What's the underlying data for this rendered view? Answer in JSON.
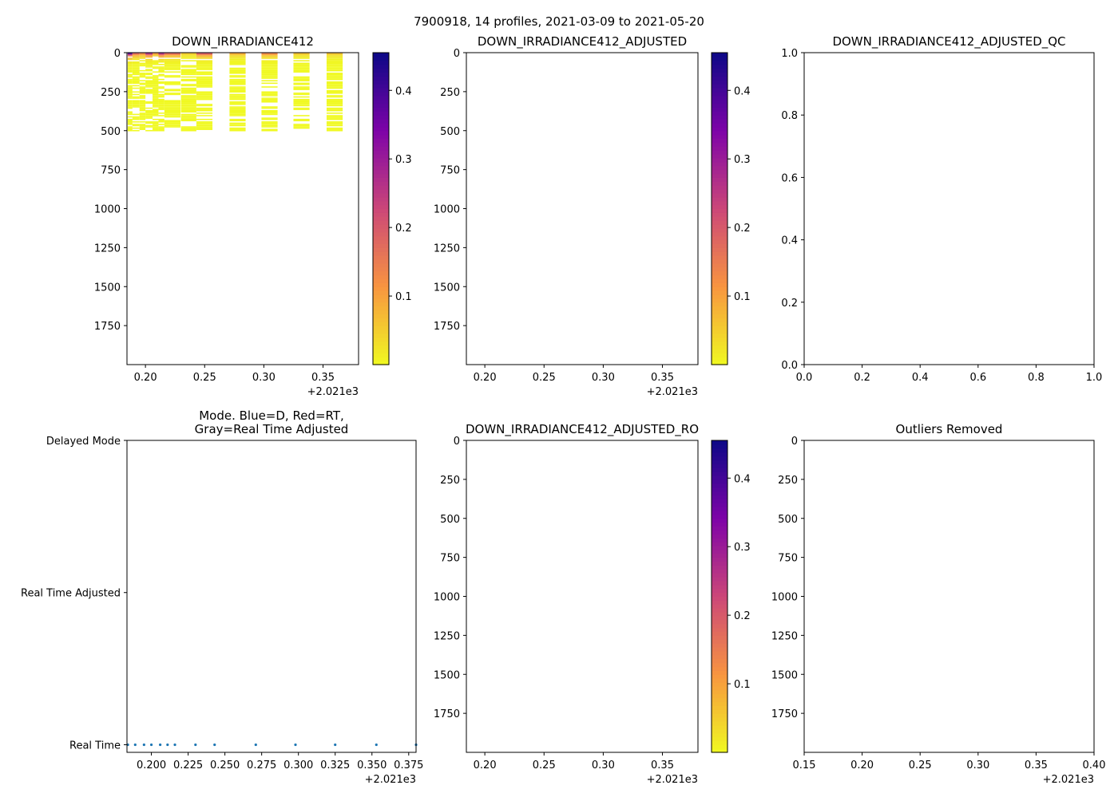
{
  "suptitle": "7900918, 14 profiles, 2021-03-09 to 2021-05-20",
  "colors": {
    "point": "#1f77b4",
    "frame": "#000000",
    "cmap": "plasma_r"
  },
  "profile_times": [
    0.184,
    0.189,
    0.195,
    0.2,
    0.206,
    0.211,
    0.216,
    0.23,
    0.243,
    0.271,
    0.298,
    0.325,
    0.353,
    0.38
  ],
  "chart_data": [
    {
      "id": "p1",
      "type": "heatmap",
      "title": "DOWN_IRRADIANCE412",
      "xlim": [
        0.1844,
        0.38
      ],
      "ylim": [
        2000,
        0
      ],
      "y_inverted": true,
      "xticks": [
        0.2,
        0.25,
        0.3,
        0.35
      ],
      "xtick_labels": [
        "0.20",
        "0.25",
        "0.30",
        "0.35"
      ],
      "x_offset": "+2.021e3",
      "yticks": [
        0,
        250,
        500,
        750,
        1000,
        1250,
        1500,
        1750
      ],
      "ytick_labels": [
        "0",
        "250",
        "500",
        "750",
        "1000",
        "1250",
        "1500",
        "1750"
      ],
      "profiles": [
        {
          "time": 0.185,
          "max_depth": 500,
          "surface_value": 0.42
        },
        {
          "time": 0.189,
          "max_depth": 500,
          "surface_value": 0.2
        },
        {
          "time": 0.195,
          "max_depth": 500,
          "surface_value": 0.15
        },
        {
          "time": 0.2,
          "max_depth": 500,
          "surface_value": 0.3
        },
        {
          "time": 0.206,
          "max_depth": 500,
          "surface_value": 0.12
        },
        {
          "time": 0.211,
          "max_depth": 500,
          "surface_value": 0.3
        },
        {
          "time": 0.216,
          "max_depth": 500,
          "surface_value": 0.2
        },
        {
          "time": 0.23,
          "max_depth": 500,
          "surface_value": 0.06
        },
        {
          "time": 0.243,
          "max_depth": 500,
          "surface_value": 0.22
        },
        {
          "time": 0.271,
          "max_depth": 500,
          "surface_value": 0.1
        },
        {
          "time": 0.298,
          "max_depth": 500,
          "surface_value": 0.15
        },
        {
          "time": 0.325,
          "max_depth": 500,
          "surface_value": 0.07
        },
        {
          "time": 0.353,
          "max_depth": 500,
          "surface_value": 0.07
        },
        {
          "time": 0.38,
          "max_depth": 0,
          "surface_value": 0
        }
      ],
      "colorbar": {
        "range": [
          0,
          0.455
        ],
        "ticks": [
          0.1,
          0.2,
          0.3,
          0.4
        ],
        "tick_labels": [
          "0.1",
          "0.2",
          "0.3",
          "0.4"
        ]
      }
    },
    {
      "id": "p2",
      "type": "heatmap",
      "title": "DOWN_IRRADIANCE412_ADJUSTED",
      "xlim": [
        0.1844,
        0.38
      ],
      "ylim": [
        2000,
        0
      ],
      "xticks": [
        0.2,
        0.25,
        0.3,
        0.35
      ],
      "xtick_labels": [
        "0.20",
        "0.25",
        "0.30",
        "0.35"
      ],
      "x_offset": "+2.021e3",
      "yticks": [
        0,
        250,
        500,
        750,
        1000,
        1250,
        1500,
        1750
      ],
      "ytick_labels": [
        "0",
        "250",
        "500",
        "750",
        "1000",
        "1250",
        "1500",
        "1750"
      ],
      "profiles": [],
      "colorbar": {
        "range": [
          0,
          0.455
        ],
        "ticks": [
          0.1,
          0.2,
          0.3,
          0.4
        ],
        "tick_labels": [
          "0.1",
          "0.2",
          "0.3",
          "0.4"
        ]
      }
    },
    {
      "id": "p3",
      "type": "line",
      "title": "DOWN_IRRADIANCE412_ADJUSTED_QC",
      "xlim": [
        0,
        1
      ],
      "ylim": [
        0,
        1
      ],
      "xticks": [
        0,
        0.2,
        0.4,
        0.6,
        0.8,
        1.0
      ],
      "xtick_labels": [
        "0.0",
        "0.2",
        "0.4",
        "0.6",
        "0.8",
        "1.0"
      ],
      "yticks": [
        0,
        0.2,
        0.4,
        0.6,
        0.8,
        1.0
      ],
      "ytick_labels": [
        "0.0",
        "0.2",
        "0.4",
        "0.6",
        "0.8",
        "1.0"
      ]
    },
    {
      "id": "p4",
      "type": "scatter",
      "title": "Mode. Blue=D, Red=RT,",
      "title2": "Gray=Real Time Adjusted",
      "xlim": [
        0.1834,
        0.38
      ],
      "ylim": [
        -0.05,
        2
      ],
      "xticks": [
        0.2,
        0.225,
        0.25,
        0.275,
        0.3,
        0.325,
        0.35,
        0.375
      ],
      "xtick_labels": [
        "0.200",
        "0.225",
        "0.250",
        "0.275",
        "0.300",
        "0.325",
        "0.350",
        "0.375"
      ],
      "x_offset": "+2.021e3",
      "yticks": [
        2,
        1,
        0
      ],
      "ytick_labels": [
        "Delayed Mode",
        "Real Time Adjusted",
        "Real Time"
      ],
      "x": [
        0.184,
        0.189,
        0.195,
        0.2,
        0.206,
        0.211,
        0.216,
        0.23,
        0.243,
        0.271,
        0.298,
        0.325,
        0.353,
        0.38
      ],
      "y": [
        0,
        0,
        0,
        0,
        0,
        0,
        0,
        0,
        0,
        0,
        0,
        0,
        0,
        0
      ]
    },
    {
      "id": "p5",
      "type": "heatmap",
      "title": "DOWN_IRRADIANCE412_ADJUSTED_RO",
      "xlim": [
        0.1844,
        0.38
      ],
      "ylim": [
        2000,
        0
      ],
      "xticks": [
        0.2,
        0.25,
        0.3,
        0.35
      ],
      "xtick_labels": [
        "0.20",
        "0.25",
        "0.30",
        "0.35"
      ],
      "x_offset": "+2.021e3",
      "yticks": [
        0,
        250,
        500,
        750,
        1000,
        1250,
        1500,
        1750
      ],
      "ytick_labels": [
        "0",
        "250",
        "500",
        "750",
        "1000",
        "1250",
        "1500",
        "1750"
      ],
      "profiles": [],
      "colorbar": {
        "range": [
          0,
          0.455
        ],
        "ticks": [
          0.1,
          0.2,
          0.3,
          0.4
        ],
        "tick_labels": [
          "0.1",
          "0.2",
          "0.3",
          "0.4"
        ]
      }
    },
    {
      "id": "p6",
      "type": "heatmap",
      "title": "Outliers Removed",
      "xlim": [
        0.15,
        0.4
      ],
      "ylim": [
        2000,
        0
      ],
      "xticks": [
        0.15,
        0.2,
        0.25,
        0.3,
        0.35,
        0.4
      ],
      "xtick_labels": [
        "0.15",
        "0.20",
        "0.25",
        "0.30",
        "0.35",
        "0.40"
      ],
      "x_offset": "+2.021e3",
      "yticks": [
        0,
        250,
        500,
        750,
        1000,
        1250,
        1500,
        1750
      ],
      "ytick_labels": [
        "0",
        "250",
        "500",
        "750",
        "1000",
        "1250",
        "1500",
        "1750"
      ],
      "profiles": []
    }
  ]
}
